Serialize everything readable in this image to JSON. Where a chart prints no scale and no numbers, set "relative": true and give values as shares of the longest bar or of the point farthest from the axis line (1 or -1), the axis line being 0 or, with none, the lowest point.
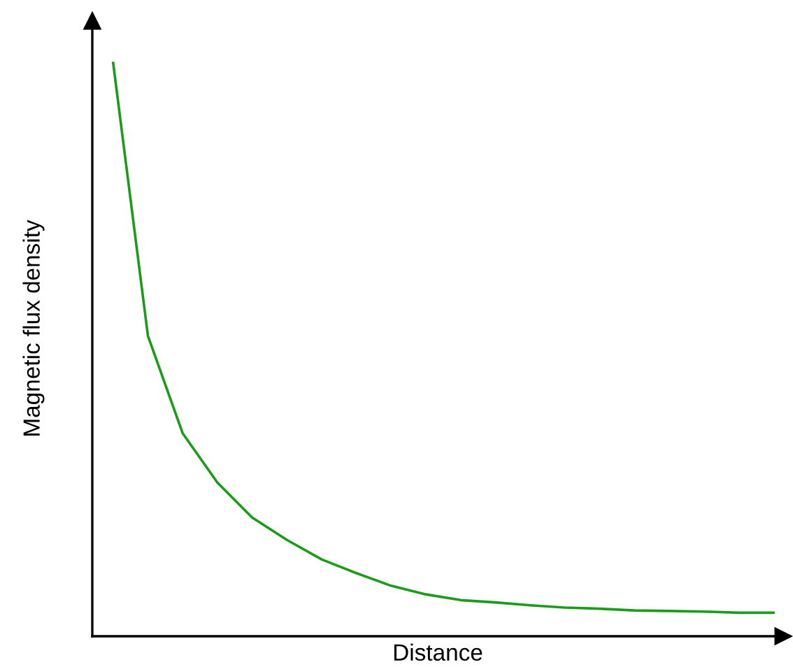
{
  "chart_data": {
    "type": "line",
    "relative": true,
    "xlabel": "Distance",
    "ylabel": "Magnetic flux density",
    "grid": false,
    "legend": false,
    "marker": "none",
    "line_style": "solid",
    "categories": [
      null,
      null,
      null,
      null,
      null,
      null,
      null,
      null,
      null,
      null,
      null,
      null,
      null,
      null,
      null,
      null,
      null,
      null,
      null,
      null
    ],
    "series": [
      {
        "color": "#1a9c1a",
        "values": [
          1,
          0.524,
          0.354,
          0.268,
          0.207,
          0.168,
          0.134,
          0.11,
          0.088,
          0.073,
          0.063,
          0.059,
          0.054,
          0.05,
          0.048,
          0.045,
          0.044,
          0.043,
          0.041,
          0.041
        ]
      }
    ]
  }
}
